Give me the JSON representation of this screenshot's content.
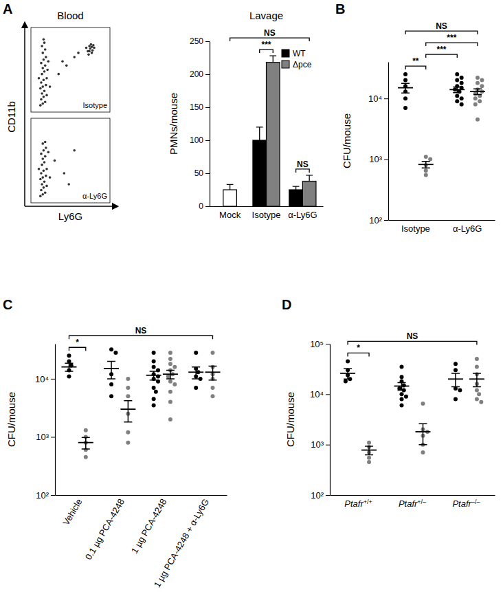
{
  "chart_data": [
    {
      "type": "scatter",
      "panel": "A",
      "title": "Blood",
      "y_label": "CD11b",
      "annotations": [
        "Isotype"
      ],
      "color": "#333333",
      "tick_labels": false,
      "xlim": [
        0,
        100
      ],
      "ylim": [
        0,
        100
      ],
      "x": [
        12,
        15,
        18,
        13,
        16,
        20,
        14,
        17,
        12,
        15,
        19,
        13,
        16,
        20,
        14,
        17,
        15,
        18,
        13,
        16,
        19,
        15,
        18,
        14,
        17,
        16,
        22,
        24,
        10,
        21,
        72,
        75,
        78,
        74,
        77,
        80,
        73,
        76,
        70,
        79,
        74,
        77,
        40,
        55,
        35,
        60,
        45
      ],
      "y": [
        8,
        10,
        12,
        15,
        18,
        20,
        22,
        25,
        28,
        30,
        32,
        35,
        38,
        40,
        45,
        48,
        52,
        55,
        58,
        62,
        65,
        70,
        74,
        78,
        82,
        86,
        60,
        30,
        40,
        50,
        72,
        75,
        73,
        78,
        70,
        76,
        68,
        80,
        76,
        79,
        72,
        77,
        60,
        65,
        45,
        70,
        55
      ]
    },
    {
      "type": "scatter",
      "x_label": "Ly6G",
      "annotations": [
        "α-Ly6G"
      ],
      "color": "#333333",
      "tick_labels": false,
      "xlim": [
        0,
        100
      ],
      "ylim": [
        0,
        100
      ],
      "x": [
        12,
        15,
        18,
        13,
        16,
        20,
        14,
        17,
        12,
        15,
        19,
        13,
        16,
        20,
        14,
        17,
        15,
        18,
        13,
        16,
        19,
        15,
        18,
        22,
        24,
        10,
        30,
        42,
        55,
        48
      ],
      "y": [
        8,
        10,
        12,
        15,
        18,
        20,
        22,
        25,
        28,
        30,
        32,
        35,
        38,
        40,
        45,
        48,
        52,
        55,
        58,
        62,
        65,
        70,
        72,
        60,
        30,
        40,
        50,
        35,
        62,
        22
      ]
    },
    {
      "type": "bar",
      "title": "Lavage",
      "y_label": "PMNs/mouse",
      "categories": [
        "Mock",
        "Isotype",
        "α-Ly6G"
      ],
      "series": [
        {
          "name": "WT",
          "color": "#000000",
          "values": [
            null,
            100,
            25
          ],
          "errors": [
            null,
            20,
            5
          ]
        },
        {
          "name": "Δpce",
          "color": "#808080",
          "values": [
            null,
            218,
            38
          ],
          "errors": [
            null,
            10,
            9
          ]
        },
        {
          "color": "#ffffff",
          "values": [
            25,
            null,
            null
          ],
          "errors": [
            8,
            null,
            null
          ]
        }
      ],
      "ylim": [
        0,
        250
      ],
      "yticks": [
        0,
        50,
        100,
        150,
        200,
        250
      ],
      "legend": "upper right",
      "brackets": [
        {
          "label": "NS",
          "from": [
            0,
            2
          ],
          "to": [
            2,
            1
          ]
        },
        {
          "label": "***",
          "from": [
            1,
            0
          ],
          "to": [
            1,
            1
          ]
        },
        {
          "label": "NS",
          "from": [
            2,
            0
          ],
          "to": [
            2,
            1
          ]
        }
      ]
    },
    {
      "type": "strip",
      "panel": "B",
      "y_label": "CFU/mouse",
      "log": "y",
      "categories": [
        "Isotype",
        "α-Ly6G"
      ],
      "ylim": [
        100,
        40000
      ],
      "yticks": [
        {
          "value": 100,
          "label": "10²"
        },
        {
          "value": 1000,
          "label": "10³"
        },
        {
          "value": 10000,
          "label": "10⁴"
        }
      ],
      "series": [
        {
          "color": "#000000",
          "values": [
            [
              25000,
              20000,
              16000,
              13000,
              10000,
              7000
            ],
            [
              25000,
              22000,
              20000,
              18000,
              16000,
              15000,
              14000,
              13000,
              11000,
              10000,
              9000,
              8000
            ]
          ],
          "means": [
            15000,
            14000
          ],
          "errors": [
            2700,
            1500
          ]
        },
        {
          "color": "#808080",
          "values": [
            [
              1100,
              1000,
              800,
              650,
              550
            ],
            [
              22000,
              20000,
              18000,
              16000,
              14000,
              13000,
              12000,
              11000,
              10000,
              9000,
              8000,
              4500
            ]
          ],
          "means": [
            820,
            13000
          ],
          "errors": [
            100,
            1400
          ]
        }
      ],
      "brackets": [
        {
          "label": "NS",
          "from": [
            0,
            0
          ],
          "to": [
            1,
            1
          ]
        },
        {
          "label": "**",
          "from": [
            0,
            0
          ],
          "to": [
            0,
            1
          ]
        },
        {
          "label": "***",
          "from": [
            0,
            1
          ],
          "to": [
            1,
            0
          ]
        },
        {
          "label": "***",
          "from": [
            0,
            1
          ],
          "to": [
            1,
            1
          ]
        }
      ]
    },
    {
      "type": "strip",
      "panel": "C",
      "y_label": "CFU/mouse",
      "log": "y",
      "categories": [
        "Vehicle",
        "0.1 µg PCA-4248",
        "1 µg PCA-4248",
        "1 µg PCA-4248 + α-Ly6G"
      ],
      "ylim": [
        100,
        40000
      ],
      "yticks": [
        {
          "value": 100,
          "label": "10²"
        },
        {
          "value": 1000,
          "label": "10³"
        },
        {
          "value": 10000,
          "label": "10⁴"
        }
      ],
      "series": [
        {
          "color": "#000000",
          "values": [
            [
              25000,
              20000,
              17000,
              14000,
              11000
            ],
            [
              32000,
              28000,
              12000,
              8000,
              5000
            ],
            [
              28000,
              20000,
              16000,
              14000,
              12000,
              11000,
              10000,
              9000,
              7000,
              6000,
              4500,
              3500
            ],
            [
              28000,
              15000,
              13000,
              11000,
              10000,
              7000
            ]
          ],
          "means": [
            16000,
            15000,
            11500,
            13000
          ],
          "errors": [
            2500,
            5000,
            2000,
            3000
          ]
        },
        {
          "color": "#808080",
          "values": [
            [
              1300,
              1000,
              800,
              600,
              450
            ],
            [
              10000,
              7000,
              5000,
              2500,
              1200,
              800
            ],
            [
              28000,
              22000,
              18000,
              16000,
              14000,
              12000,
              11000,
              9000,
              8000,
              6000,
              4000,
              2000
            ],
            [
              28000,
              16000,
              12000,
              10000,
              7000,
              5000
            ]
          ],
          "means": [
            800,
            3000,
            12000,
            13000
          ],
          "errors": [
            180,
            1200,
            2000,
            3500
          ]
        }
      ],
      "brackets": [
        {
          "label": "*",
          "from": [
            0,
            0
          ],
          "to": [
            0,
            1
          ]
        },
        {
          "label": "NS",
          "from": [
            0,
            0
          ],
          "to": [
            3,
            1
          ]
        }
      ]
    },
    {
      "type": "strip",
      "panel": "D",
      "y_label": "CFU/mouse",
      "log": "y",
      "categories": [
        "Ptafr+/+",
        "Ptafr+/–",
        "Ptafr–/–"
      ],
      "ylim": [
        100,
        100000
      ],
      "yticks": [
        {
          "value": 100,
          "label": "10²"
        },
        {
          "value": 1000,
          "label": "10³"
        },
        {
          "value": 10000,
          "label": "10⁴"
        },
        {
          "value": 100000,
          "label": "10⁵"
        }
      ],
      "series": [
        {
          "color": "#000000",
          "values": [
            [
              45000,
              30000,
              24000,
              20000,
              18000
            ],
            [
              35000,
              22000,
              18000,
              15000,
              13000,
              12000,
              10000,
              9000,
              8000,
              6000
            ],
            [
              40000,
              30000,
              13000,
              12000,
              8000
            ]
          ],
          "means": [
            26000,
            14500,
            20000
          ],
          "errors": [
            6000,
            2500,
            6000
          ]
        },
        {
          "color": "#808080",
          "values": [
            [
              1100,
              900,
              700,
              550,
              450
            ],
            [
              6500,
              2000,
              1800,
              1500,
              1000,
              700
            ],
            [
              50000,
              35000,
              25000,
              16000,
              12000,
              10000,
              8000,
              7000
            ]
          ],
          "means": [
            780,
            1800,
            20000
          ],
          "errors": [
            150,
            800,
            6000
          ]
        }
      ],
      "brackets": [
        {
          "label": "*",
          "from": [
            0,
            0
          ],
          "to": [
            0,
            1
          ]
        },
        {
          "label": "NS",
          "from": [
            0,
            0
          ],
          "to": [
            2,
            1
          ]
        }
      ]
    }
  ]
}
